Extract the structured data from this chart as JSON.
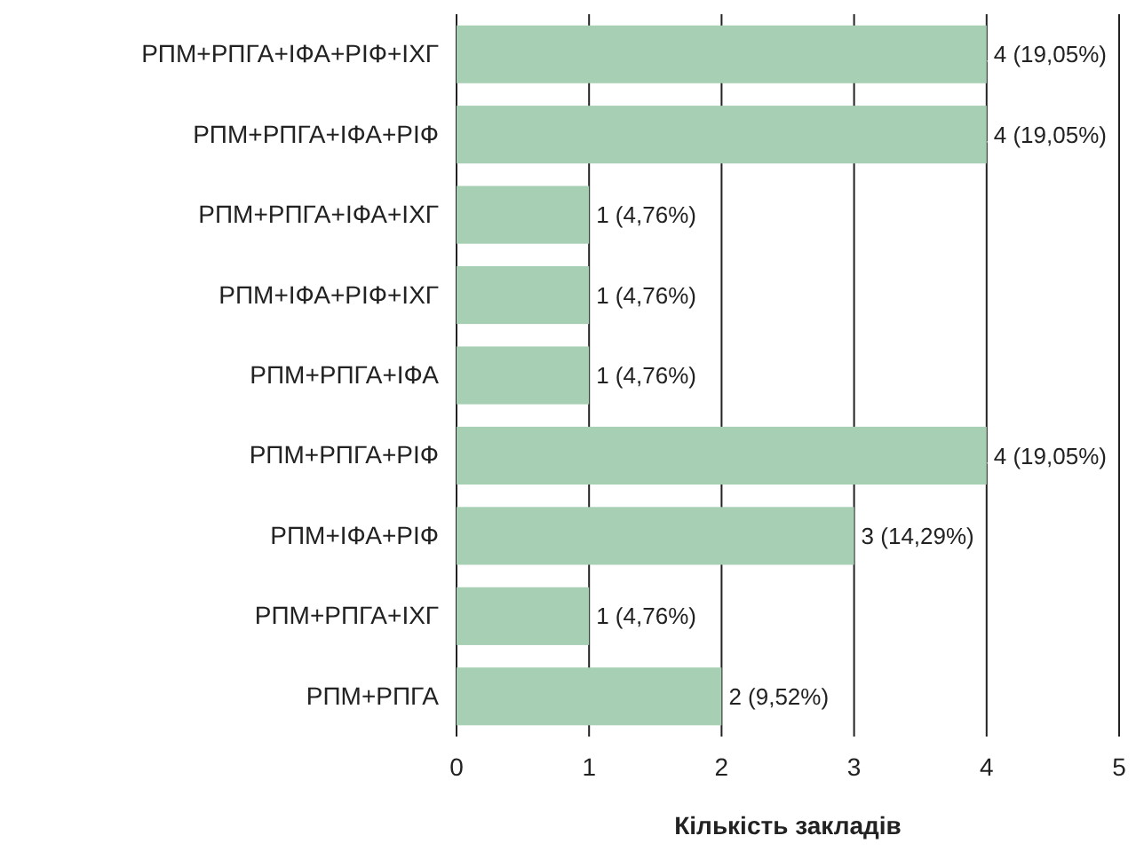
{
  "chart_data": {
    "type": "bar",
    "orientation": "horizontal",
    "xlabel": "Кількість закладів",
    "categories": [
      "РПМ+РПГА+ІФА+РІФ+ІХГ",
      "РПМ+РПГА+ІФА+РІФ",
      "РПМ+РПГА+ІФА+ІХГ",
      "РПМ+ІФА+РІФ+ІХГ",
      "РПМ+РПГА+ІФА",
      "РПМ+РПГА+РІФ",
      "РПМ+ІФА+РІФ",
      "РПМ+РПГА+ІХГ",
      "РПМ+РПГА"
    ],
    "values": [
      4,
      4,
      1,
      1,
      1,
      4,
      3,
      1,
      2
    ],
    "value_labels": [
      "4 (19,05%)",
      "4 (19,05%)",
      "1 (4,76%)",
      "1 (4,76%)",
      "1 (4,76%)",
      "4 (19,05%)",
      "3 (14,29%)",
      "1 (4,76%)",
      "2 (9,52%)"
    ],
    "color": "#a6cfb3",
    "xlim": [
      0,
      5
    ],
    "xticks": [
      0,
      1,
      2,
      3,
      4,
      5
    ],
    "grid": "x"
  }
}
